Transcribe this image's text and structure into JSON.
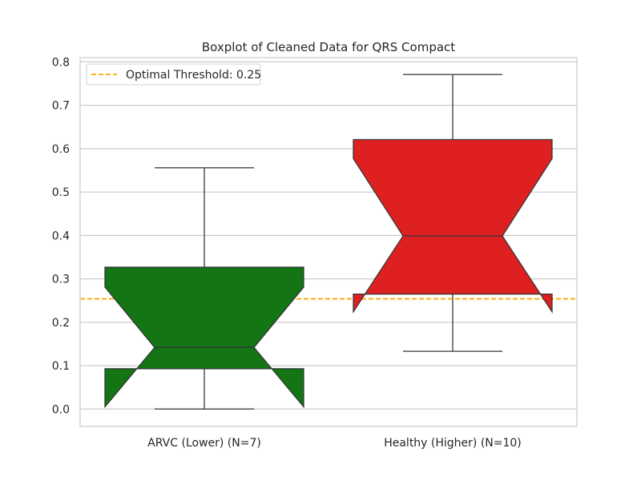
{
  "chart_data": {
    "type": "box",
    "title": "Boxplot of Cleaned Data for QRS Compact",
    "xlabel": "",
    "ylabel": "",
    "ylim": [
      -0.04,
      0.81
    ],
    "yticks": [
      0.0,
      0.1,
      0.2,
      0.3,
      0.4,
      0.5,
      0.6,
      0.7,
      0.8
    ],
    "ytick_labels": [
      "0.0",
      "0.1",
      "0.2",
      "0.3",
      "0.4",
      "0.5",
      "0.6",
      "0.7",
      "0.8"
    ],
    "grid": true,
    "notched": true,
    "categories": [
      "ARVC (Lower) (N=7)",
      "Healthy (Higher) (N=10)"
    ],
    "series": [
      {
        "color": "#137514",
        "whisker_low": 0.0,
        "q1": 0.093,
        "notch_low": 0.005,
        "median": 0.142,
        "notch_high": 0.281,
        "q3": 0.327,
        "whisker_high": 0.556
      },
      {
        "color": "#df2020",
        "whisker_low": 0.133,
        "q1": 0.265,
        "notch_low": 0.224,
        "median": 0.399,
        "notch_high": 0.577,
        "q3": 0.621,
        "whisker_high": 0.771
      }
    ],
    "threshold": {
      "label": "Optimal Threshold: 0.25",
      "value": 0.254,
      "color": "#ffa500",
      "style": "dashed"
    },
    "legend": {
      "placement": "upper-left"
    }
  }
}
